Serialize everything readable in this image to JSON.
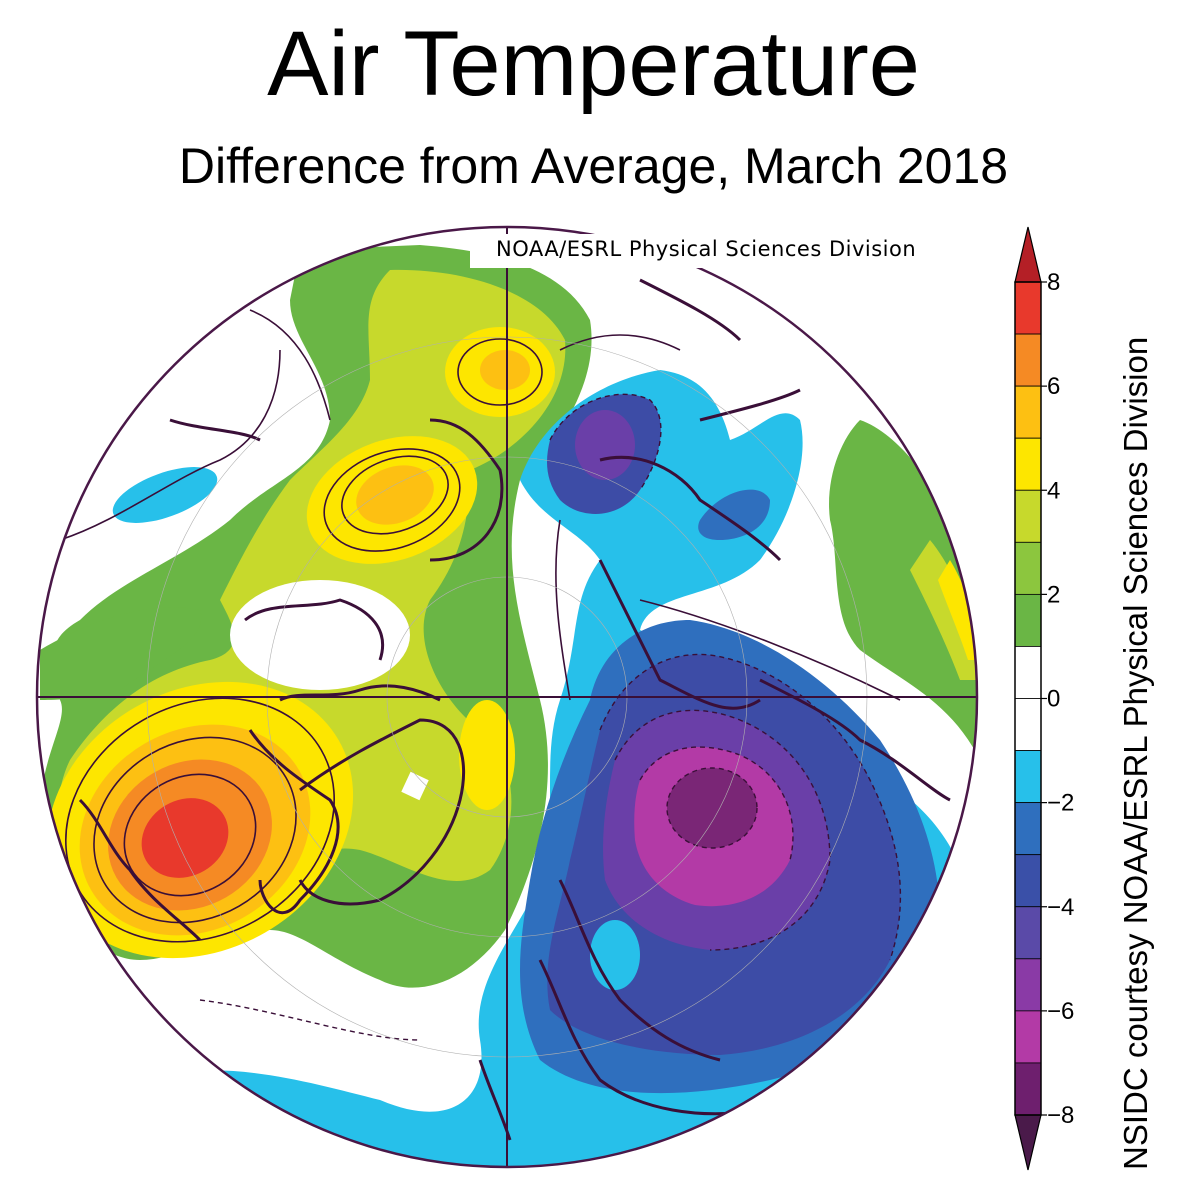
{
  "title": "Air Temperature",
  "subtitle": "Difference from Average, March 2018",
  "map_credit": "NOAA/ESRL Physical Sciences Division",
  "side_credit": "NSIDC courtesy NOAA/ESRL Physical Sciences Division",
  "projection": "north-polar-stereographic",
  "colorbar": {
    "min": -8,
    "max": 8,
    "tick_labels": [
      "8",
      "6",
      "4",
      "2",
      "0",
      "−2",
      "−4",
      "−6",
      "−8"
    ],
    "tick_values": [
      8,
      6,
      4,
      2,
      0,
      -2,
      -4,
      -6,
      -8
    ],
    "levels": [
      {
        "from": 7,
        "to": 8,
        "color": "#e8392c"
      },
      {
        "from": 6,
        "to": 7,
        "color": "#f58a24"
      },
      {
        "from": 5,
        "to": 6,
        "color": "#fdc012"
      },
      {
        "from": 4,
        "to": 5,
        "color": "#fde600"
      },
      {
        "from": 3,
        "to": 4,
        "color": "#c7d92c"
      },
      {
        "from": 2,
        "to": 3,
        "color": "#8cc63e"
      },
      {
        "from": 1,
        "to": 2,
        "color": "#6ab645"
      },
      {
        "from": 0,
        "to": 1,
        "color": "#ffffff"
      },
      {
        "from": -1,
        "to": 0,
        "color": "#ffffff"
      },
      {
        "from": -2,
        "to": -1,
        "color": "#27c0ea"
      },
      {
        "from": -3,
        "to": -2,
        "color": "#2f6fbe"
      },
      {
        "from": -4,
        "to": -3,
        "color": "#3a50a8"
      },
      {
        "from": -5,
        "to": -4,
        "color": "#5a4aa8"
      },
      {
        "from": -6,
        "to": -5,
        "color": "#8a3aa6"
      },
      {
        "from": -7,
        "to": -6,
        "color": "#b33aa6"
      },
      {
        "from": -8,
        "to": -7,
        "color": "#6e1f6e"
      }
    ],
    "over_color": "#b41f26",
    "under_color": "#4a1a4a"
  },
  "colors": {
    "outline": "#4a1848",
    "coast": "#3a0f38",
    "white": "#ffffff",
    "lightblue": "#27c0ea",
    "blue": "#2f6fbe",
    "indigo": "#3d4ca6",
    "violet": "#6a3fa8",
    "magenta": "#b33aa6",
    "plum": "#7a2676",
    "green": "#6ab645",
    "lime": "#c7d92c",
    "yellow": "#fde600",
    "gold": "#fdc012",
    "orange": "#f58a24",
    "red": "#e8392c"
  }
}
